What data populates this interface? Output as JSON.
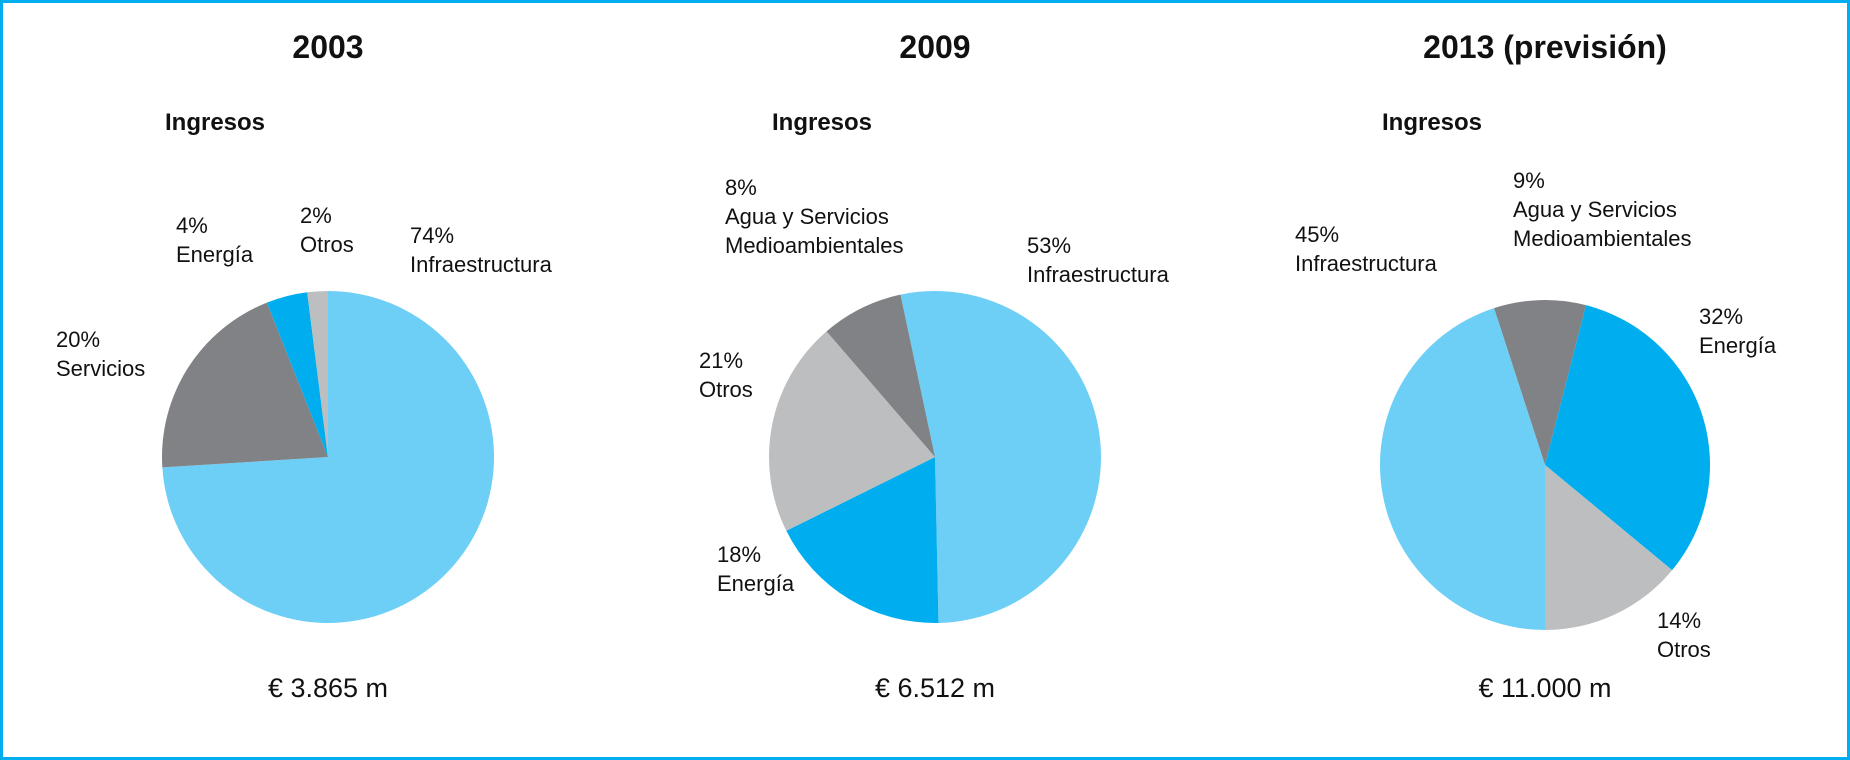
{
  "chart_data": [
    {
      "type": "pie",
      "title": "2003",
      "subtitle": "Ingresos",
      "categories": [
        "Infraestructura",
        "Servicios",
        "Energía",
        "Otros"
      ],
      "values": [
        74,
        20,
        4,
        2
      ],
      "value_labels": [
        "74%",
        "20%",
        "4%",
        "2%"
      ],
      "colors": [
        "#6dcff6",
        "#808285",
        "#00aeef",
        "#bcbec0"
      ],
      "annotation": "€ 3.865 m"
    },
    {
      "type": "pie",
      "title": "2009",
      "subtitle": "Ingresos",
      "categories": [
        "Infraestructura",
        "Energía",
        "Otros",
        "Agua y Servicios Medioambientales"
      ],
      "values": [
        53,
        18,
        21,
        8
      ],
      "value_labels": [
        "53%",
        "18%",
        "21%",
        "8%"
      ],
      "colors": [
        "#6dcff6",
        "#00aeef",
        "#bcbec0",
        "#808285"
      ],
      "annotation": "€ 6.512 m"
    },
    {
      "type": "pie",
      "title": "2013 (previsión)",
      "subtitle": "Ingresos",
      "categories": [
        "Agua y Servicios Medioambientales",
        "Energía",
        "Otros",
        "Infraestructura"
      ],
      "values": [
        9,
        32,
        14,
        45
      ],
      "value_labels": [
        "9%",
        "32%",
        "14%",
        "45%"
      ],
      "colors": [
        "#808285",
        "#00aeef",
        "#bcbec0",
        "#6dcff6"
      ],
      "annotation": "€ 11.000 m"
    }
  ]
}
